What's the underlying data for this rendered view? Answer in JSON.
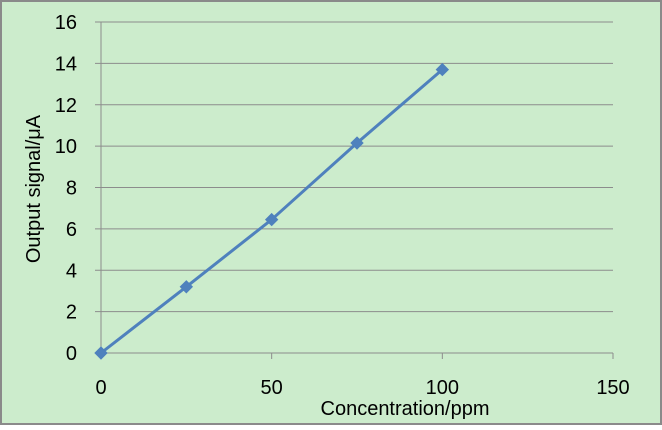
{
  "chart_data": {
    "type": "line",
    "title": "",
    "xlabel": "Concentration/ppm",
    "ylabel": "Output signal/μA",
    "xlim": [
      0,
      150
    ],
    "ylim": [
      0,
      16
    ],
    "x_ticks": [
      0,
      50,
      100,
      150
    ],
    "y_ticks": [
      0,
      2,
      4,
      6,
      8,
      10,
      12,
      14,
      16
    ],
    "grid": "horizontal",
    "legend": "none",
    "series": [
      {
        "x": [
          0,
          25,
          50,
          75,
          100
        ],
        "values": [
          0.0,
          3.2,
          6.45,
          10.15,
          13.7
        ],
        "color": "#4f81bd",
        "marker": "diamond"
      }
    ],
    "colors": {
      "background": "#cceccc",
      "border": "#8a8a8a",
      "grid": "#8c8c8c",
      "axis": "#8c8c8c"
    }
  }
}
